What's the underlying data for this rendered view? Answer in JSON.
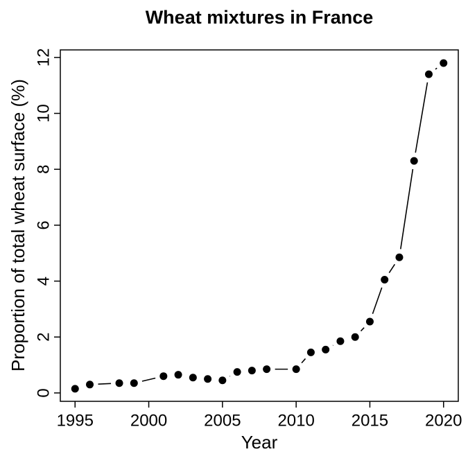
{
  "chart_data": {
    "type": "line",
    "markers": true,
    "title": "Wheat mixtures in France",
    "x_label": "Year",
    "y_label": "Proportion of total wheat surface (%)",
    "x": [
      1995,
      1996,
      1998,
      1999,
      2001,
      2002,
      2003,
      2004,
      2005,
      2006,
      2007,
      2008,
      2010,
      2011,
      2012,
      2013,
      2014,
      2015,
      2016,
      2017,
      2018,
      2019,
      2020
    ],
    "series": [
      {
        "name": "Wheat mixtures",
        "color": "#000000",
        "values": [
          0.15,
          0.3,
          0.35,
          0.35,
          0.6,
          0.65,
          0.55,
          0.5,
          0.45,
          0.75,
          0.8,
          0.85,
          0.85,
          1.45,
          1.55,
          1.85,
          2.0,
          2.55,
          4.05,
          4.85,
          8.3,
          11.4,
          11.8
        ]
      }
    ],
    "xlim": [
      1994,
      2021
    ],
    "xticks": [
      1995,
      2000,
      2005,
      2010,
      2015,
      2020
    ],
    "ylim": [
      -0.3,
      12.27
    ],
    "yticks": [
      0,
      2,
      4,
      6,
      8,
      10,
      12
    ],
    "grid": false
  }
}
